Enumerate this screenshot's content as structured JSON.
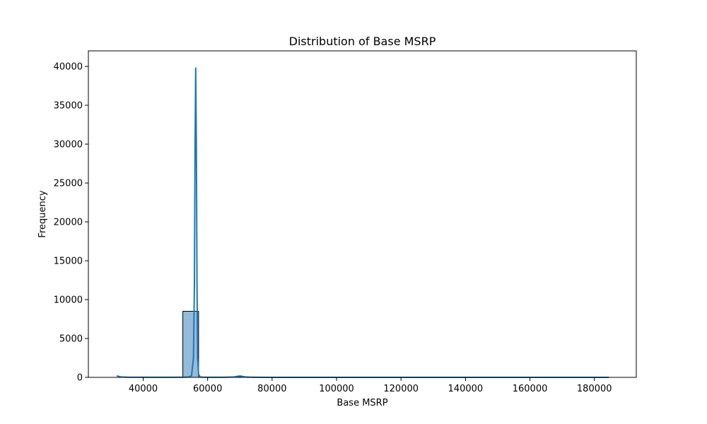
{
  "chart_data": {
    "type": "bar",
    "title": "Distribution of Base MSRP",
    "xlabel": "Base MSRP",
    "ylabel": "Frequency",
    "xlim": [
      23000,
      193000
    ],
    "ylim": [
      0,
      42000
    ],
    "x_ticks": [
      40000,
      60000,
      80000,
      100000,
      120000,
      140000,
      160000,
      180000
    ],
    "y_ticks": [
      0,
      5000,
      10000,
      15000,
      20000,
      25000,
      30000,
      35000,
      40000
    ],
    "grid": false,
    "legend": "none",
    "histogram": {
      "bins": [
        {
          "x0": 52300,
          "x1": 57200,
          "count": 8500
        },
        {
          "x0": 67800,
          "x1": 72700,
          "count": 70
        }
      ]
    },
    "kde": {
      "x": [
        31800,
        33000,
        35000,
        40000,
        45000,
        50000,
        54000,
        55000,
        55600,
        55900,
        56100,
        56300,
        56500,
        56700,
        56900,
        57200,
        57700,
        58500,
        60000,
        65000,
        68000,
        69000,
        69500,
        70000,
        70500,
        71000,
        72000,
        75000,
        80000,
        100000,
        120000,
        140000,
        160000,
        184500
      ],
      "y": [
        200,
        60,
        20,
        10,
        10,
        10,
        30,
        200,
        2500,
        12000,
        30000,
        39800,
        30000,
        12000,
        2500,
        400,
        60,
        20,
        10,
        10,
        40,
        120,
        160,
        170,
        160,
        100,
        30,
        10,
        5,
        5,
        5,
        5,
        5,
        5
      ]
    },
    "colors": {
      "bar_fill": "#95bbd9",
      "bar_edge": "#000000",
      "line": "#1f77b4"
    }
  }
}
